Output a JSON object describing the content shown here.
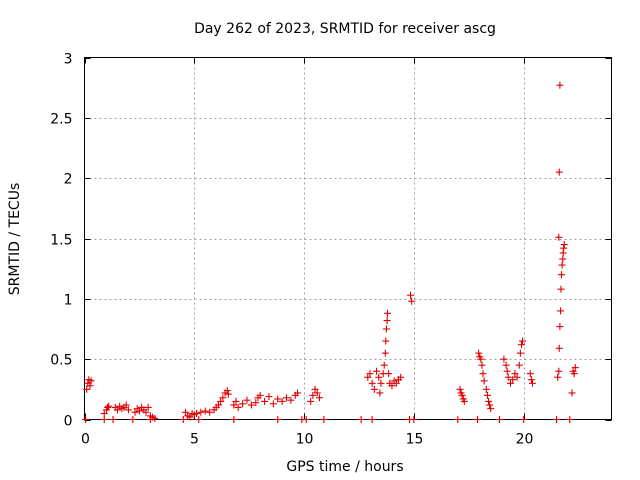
{
  "chart_data": {
    "type": "scatter",
    "title": "Day 262 of 2023, SRMTID for receiver ascg",
    "xlabel": "GPS time / hours",
    "ylabel": "SRMTID / TECUs",
    "xlim": [
      0,
      24
    ],
    "ylim": [
      0,
      3
    ],
    "grid": true,
    "marker": "+",
    "color": "#e00000",
    "xticks": [
      0,
      5,
      10,
      15,
      20
    ],
    "xtick_labels": [
      "0",
      "5",
      "10",
      "15",
      "20"
    ],
    "yticks": [
      0,
      0.5,
      1,
      1.5,
      2,
      2.5,
      3
    ],
    "ytick_labels": [
      "0",
      "0.5",
      "1",
      "1.5",
      "2",
      "2.5",
      "3"
    ],
    "series": [
      {
        "name": "SRMTID",
        "points": [
          [
            0.1,
            0.25
          ],
          [
            0.15,
            0.3
          ],
          [
            0.2,
            0.33
          ],
          [
            0.25,
            0.28
          ],
          [
            0.3,
            0.32
          ],
          [
            0.9,
            0.05
          ],
          [
            1.0,
            0.08
          ],
          [
            1.05,
            0.1
          ],
          [
            1.1,
            0.11
          ],
          [
            1.4,
            0.1
          ],
          [
            1.5,
            0.08
          ],
          [
            1.6,
            0.11
          ],
          [
            1.7,
            0.09
          ],
          [
            1.8,
            0.1
          ],
          [
            1.9,
            0.12
          ],
          [
            2.0,
            0.08
          ],
          [
            2.3,
            0.06
          ],
          [
            2.4,
            0.09
          ],
          [
            2.5,
            0.07
          ],
          [
            2.6,
            0.1
          ],
          [
            2.7,
            0.08
          ],
          [
            2.8,
            0.06
          ],
          [
            2.9,
            0.1
          ],
          [
            3.0,
            0.03
          ],
          [
            3.1,
            0.02
          ],
          [
            3.2,
            0.01
          ],
          [
            4.6,
            0.06
          ],
          [
            4.7,
            0.03
          ],
          [
            4.8,
            0.02
          ],
          [
            4.9,
            0.05
          ],
          [
            5.0,
            0.04
          ],
          [
            5.1,
            0.05
          ],
          [
            5.3,
            0.06
          ],
          [
            5.5,
            0.07
          ],
          [
            5.7,
            0.06
          ],
          [
            5.9,
            0.08
          ],
          [
            6.0,
            0.1
          ],
          [
            6.1,
            0.12
          ],
          [
            6.2,
            0.15
          ],
          [
            6.3,
            0.18
          ],
          [
            6.4,
            0.22
          ],
          [
            6.5,
            0.24
          ],
          [
            6.55,
            0.21
          ],
          [
            6.8,
            0.12
          ],
          [
            6.9,
            0.15
          ],
          [
            7.0,
            0.1
          ],
          [
            7.2,
            0.13
          ],
          [
            7.4,
            0.16
          ],
          [
            7.6,
            0.12
          ],
          [
            7.8,
            0.14
          ],
          [
            7.9,
            0.18
          ],
          [
            8.0,
            0.2
          ],
          [
            8.2,
            0.15
          ],
          [
            8.4,
            0.19
          ],
          [
            8.6,
            0.13
          ],
          [
            8.8,
            0.17
          ],
          [
            9.0,
            0.15
          ],
          [
            9.2,
            0.18
          ],
          [
            9.4,
            0.16
          ],
          [
            9.6,
            0.2
          ],
          [
            9.7,
            0.22
          ],
          [
            10.3,
            0.15
          ],
          [
            10.4,
            0.2
          ],
          [
            10.5,
            0.25
          ],
          [
            10.6,
            0.22
          ],
          [
            10.7,
            0.18
          ],
          [
            12.9,
            0.35
          ],
          [
            13.0,
            0.38
          ],
          [
            13.1,
            0.3
          ],
          [
            13.2,
            0.25
          ],
          [
            13.3,
            0.4
          ],
          [
            13.4,
            0.35
          ],
          [
            13.45,
            0.22
          ],
          [
            13.5,
            0.3
          ],
          [
            13.6,
            0.38
          ],
          [
            13.65,
            0.45
          ],
          [
            13.7,
            0.55
          ],
          [
            13.72,
            0.65
          ],
          [
            13.75,
            0.75
          ],
          [
            13.78,
            0.82
          ],
          [
            13.8,
            0.88
          ],
          [
            13.85,
            0.38
          ],
          [
            13.9,
            0.3
          ],
          [
            14.0,
            0.28
          ],
          [
            14.1,
            0.32
          ],
          [
            14.2,
            0.3
          ],
          [
            14.3,
            0.33
          ],
          [
            14.4,
            0.35
          ],
          [
            14.85,
            1.03
          ],
          [
            14.9,
            0.98
          ],
          [
            17.1,
            0.25
          ],
          [
            17.15,
            0.22
          ],
          [
            17.2,
            0.2
          ],
          [
            17.25,
            0.17
          ],
          [
            17.3,
            0.15
          ],
          [
            17.95,
            0.55
          ],
          [
            18.0,
            0.52
          ],
          [
            18.05,
            0.5
          ],
          [
            18.1,
            0.45
          ],
          [
            18.15,
            0.38
          ],
          [
            18.2,
            0.32
          ],
          [
            18.3,
            0.25
          ],
          [
            18.35,
            0.2
          ],
          [
            18.4,
            0.15
          ],
          [
            18.45,
            0.12
          ],
          [
            18.5,
            0.09
          ],
          [
            19.1,
            0.5
          ],
          [
            19.2,
            0.45
          ],
          [
            19.25,
            0.4
          ],
          [
            19.3,
            0.35
          ],
          [
            19.4,
            0.3
          ],
          [
            19.5,
            0.33
          ],
          [
            19.6,
            0.38
          ],
          [
            19.7,
            0.35
          ],
          [
            19.8,
            0.45
          ],
          [
            19.85,
            0.55
          ],
          [
            19.9,
            0.62
          ],
          [
            19.95,
            0.65
          ],
          [
            20.3,
            0.38
          ],
          [
            20.35,
            0.33
          ],
          [
            20.4,
            0.3
          ],
          [
            21.55,
            0.35
          ],
          [
            21.6,
            0.4
          ],
          [
            21.62,
            0.59
          ],
          [
            21.65,
            0.77
          ],
          [
            21.68,
            0.9
          ],
          [
            21.7,
            1.08
          ],
          [
            21.72,
            1.2
          ],
          [
            21.75,
            1.28
          ],
          [
            21.78,
            1.33
          ],
          [
            21.8,
            1.38
          ],
          [
            21.82,
            1.42
          ],
          [
            21.85,
            1.45
          ],
          [
            21.6,
            1.51
          ],
          [
            21.62,
            2.05
          ],
          [
            21.65,
            2.77
          ],
          [
            22.2,
            0.22
          ],
          [
            22.25,
            0.4
          ],
          [
            22.3,
            0.38
          ],
          [
            22.35,
            0.43
          ]
        ],
        "zero_points": [
          [
            0.05,
            0
          ],
          [
            0.9,
            0
          ],
          [
            1.3,
            0
          ],
          [
            2.2,
            0
          ],
          [
            3.0,
            0
          ],
          [
            4.5,
            0
          ],
          [
            5.2,
            0
          ],
          [
            6.8,
            0
          ],
          [
            8.8,
            0
          ],
          [
            9.9,
            0
          ],
          [
            10.1,
            0
          ],
          [
            10.9,
            0
          ],
          [
            12.6,
            0
          ],
          [
            13.1,
            0
          ],
          [
            14.8,
            0
          ],
          [
            15.0,
            0
          ],
          [
            17.0,
            0
          ],
          [
            17.9,
            0
          ],
          [
            18.9,
            0
          ],
          [
            20.0,
            0
          ],
          [
            21.5,
            0
          ],
          [
            22.1,
            0
          ]
        ]
      }
    ]
  }
}
